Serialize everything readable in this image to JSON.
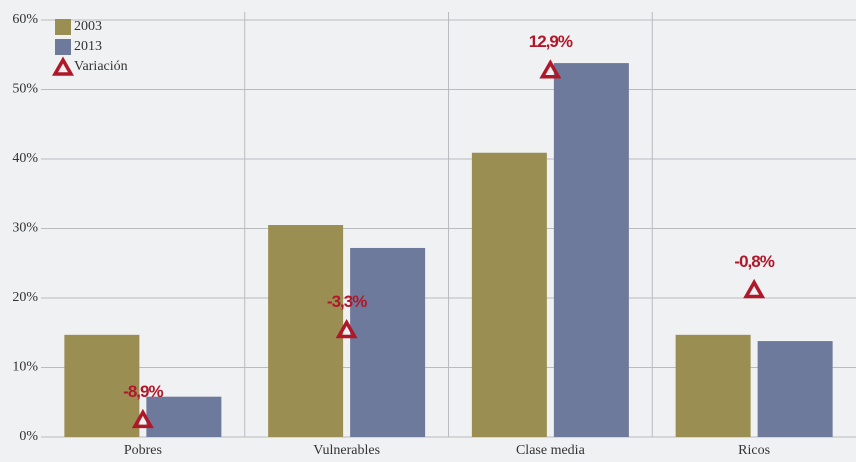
{
  "chart_data": {
    "type": "bar",
    "categories": [
      "Pobres",
      "Vulnerables",
      "Clase media",
      "Ricos"
    ],
    "series": [
      {
        "name": "2003",
        "color": "#9b8e52",
        "values": [
          14.7,
          30.5,
          40.9,
          14.7
        ]
      },
      {
        "name": "2013",
        "color": "#6e7a9b",
        "values": [
          5.8,
          27.2,
          53.8,
          13.8
        ]
      },
      {
        "name": "Variación",
        "color": "#b0182a",
        "type": "scatter",
        "axis": "y2",
        "values": [
          -8.9,
          -3.3,
          12.9,
          -0.8
        ],
        "value_labels": [
          "-8,9%",
          "-3,3%",
          "12,9%",
          "-0,8%"
        ]
      }
    ],
    "ylim": [
      0,
      60
    ],
    "yticks": [
      {
        "value": 0,
        "label": "0%"
      },
      {
        "value": 10,
        "label": "10%"
      },
      {
        "value": 20,
        "label": "20%"
      },
      {
        "value": 30,
        "label": "30%"
      },
      {
        "value": 40,
        "label": "40%"
      },
      {
        "value": 50,
        "label": "50%"
      },
      {
        "value": 60,
        "label": "60%"
      }
    ],
    "y2lim": [
      -10,
      16
    ],
    "grid": true,
    "legend": "upper left"
  }
}
